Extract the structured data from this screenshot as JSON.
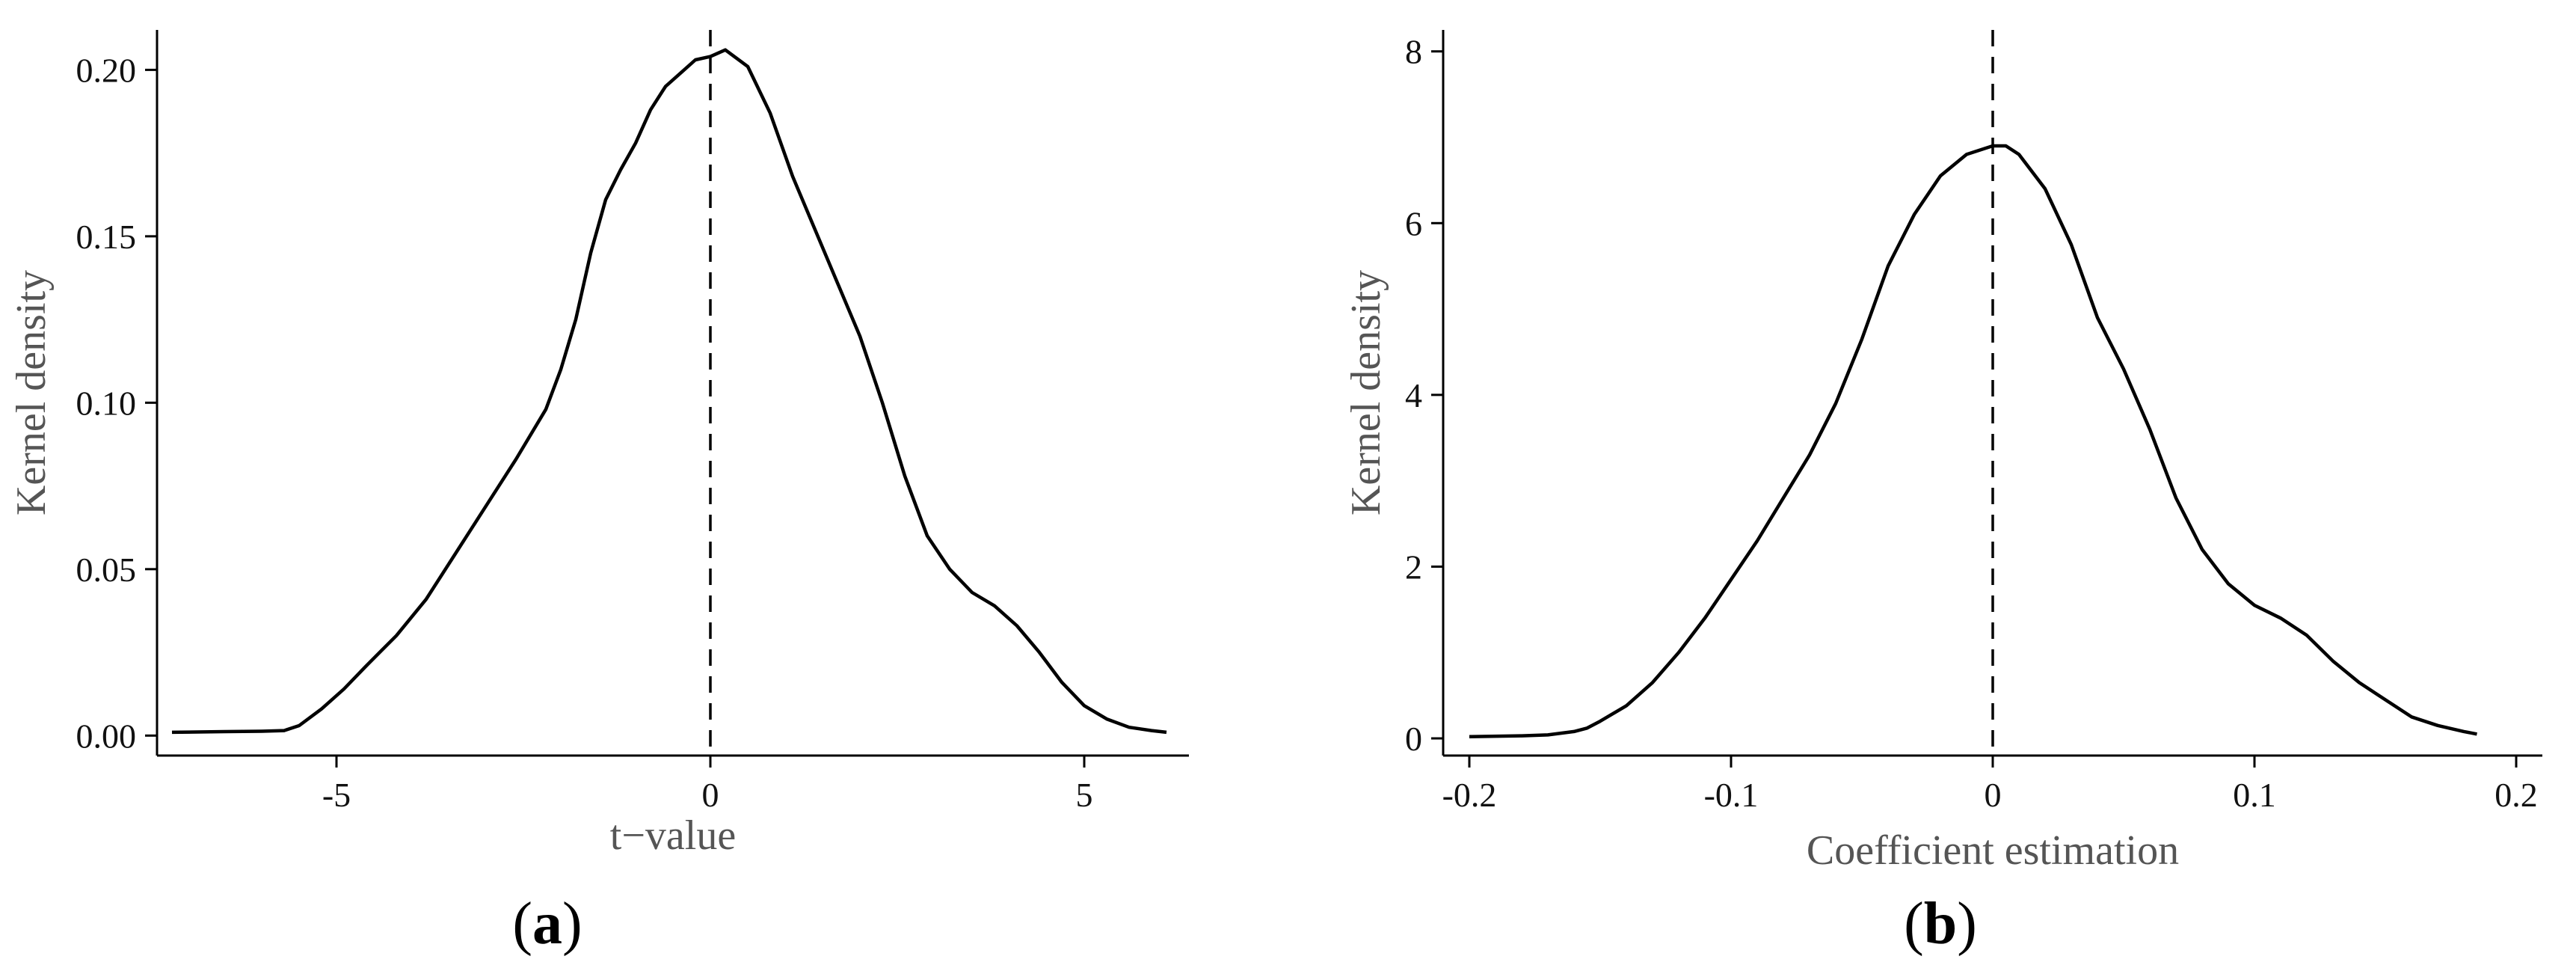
{
  "chart_data": [
    {
      "type": "line",
      "panel": "a",
      "xlabel": "t−value",
      "ylabel": "Kernel density",
      "xlim": [
        -7.4,
        6.4
      ],
      "ylim": [
        -0.006,
        0.212
      ],
      "xticks": [
        -5,
        0,
        5
      ],
      "xtick_labels": [
        "-5",
        "0",
        "5"
      ],
      "yticks": [
        0,
        0.05,
        0.1,
        0.15,
        0.2
      ],
      "ytick_labels": [
        "0.00",
        "0.05",
        "0.10",
        "0.15",
        "0.20"
      ],
      "reference_line_x": 0,
      "series": [
        {
          "x": [
            -7.2,
            -6.5,
            -6.0,
            -5.7,
            -5.5,
            -5.2,
            -4.9,
            -4.6,
            -4.2,
            -3.8,
            -3.4,
            -3.0,
            -2.6,
            -2.2,
            -2.0,
            -1.8,
            -1.6,
            -1.4,
            -1.2,
            -1.0,
            -0.8,
            -0.6,
            -0.4,
            -0.2,
            0.0,
            0.2,
            0.5,
            0.8,
            1.1,
            1.4,
            1.7,
            2.0,
            2.3,
            2.6,
            2.9,
            3.2,
            3.5,
            3.8,
            4.1,
            4.4,
            4.7,
            5.0,
            5.3,
            5.6,
            5.9,
            6.1
          ],
          "y": [
            0.001,
            0.0012,
            0.0013,
            0.0015,
            0.003,
            0.008,
            0.014,
            0.021,
            0.03,
            0.041,
            0.055,
            0.069,
            0.083,
            0.098,
            0.11,
            0.125,
            0.145,
            0.161,
            0.17,
            0.178,
            0.188,
            0.195,
            0.199,
            0.203,
            0.204,
            0.206,
            0.201,
            0.187,
            0.168,
            0.152,
            0.136,
            0.12,
            0.1,
            0.078,
            0.06,
            0.05,
            0.043,
            0.039,
            0.033,
            0.025,
            0.016,
            0.009,
            0.005,
            0.0025,
            0.0015,
            0.001
          ]
        }
      ]
    },
    {
      "type": "line",
      "panel": "b",
      "xlabel": "Coefficient estimation",
      "ylabel": "Kernel density",
      "xlim": [
        -0.21,
        0.21
      ],
      "ylim": [
        -0.2,
        8.25
      ],
      "xticks": [
        -0.2,
        -0.1,
        0,
        0.1,
        0.2
      ],
      "xtick_labels": [
        "-0.2",
        "-0.1",
        "0",
        "0.1",
        "0.2"
      ],
      "yticks": [
        0,
        2,
        4,
        6,
        8
      ],
      "ytick_labels": [
        "0",
        "2",
        "4",
        "6",
        "8"
      ],
      "reference_line_x": 0,
      "series": [
        {
          "x": [
            -0.2,
            -0.18,
            -0.17,
            -0.16,
            -0.155,
            -0.15,
            -0.14,
            -0.13,
            -0.12,
            -0.11,
            -0.1,
            -0.09,
            -0.08,
            -0.07,
            -0.06,
            -0.05,
            -0.04,
            -0.03,
            -0.02,
            -0.01,
            0.0,
            0.005,
            0.01,
            0.02,
            0.03,
            0.04,
            0.05,
            0.06,
            0.07,
            0.08,
            0.09,
            0.1,
            0.11,
            0.12,
            0.13,
            0.14,
            0.15,
            0.16,
            0.17,
            0.18,
            0.185
          ],
          "y": [
            0.02,
            0.03,
            0.04,
            0.08,
            0.12,
            0.2,
            0.38,
            0.65,
            1.0,
            1.4,
            1.85,
            2.3,
            2.8,
            3.3,
            3.9,
            4.65,
            5.5,
            6.1,
            6.55,
            6.8,
            6.9,
            6.9,
            6.8,
            6.4,
            5.75,
            4.9,
            4.3,
            3.6,
            2.8,
            2.2,
            1.8,
            1.55,
            1.4,
            1.2,
            0.9,
            0.65,
            0.45,
            0.25,
            0.15,
            0.08,
            0.05
          ]
        }
      ]
    }
  ],
  "labels": {
    "panel_a": "a",
    "panel_b": "b"
  }
}
